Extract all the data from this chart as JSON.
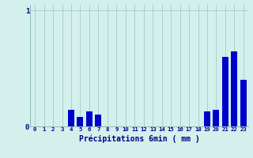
{
  "values": [
    0,
    0,
    0,
    0,
    0.14,
    0.08,
    0.13,
    0.1,
    0,
    0,
    0,
    0,
    0,
    0,
    0,
    0,
    0,
    0,
    0,
    0.13,
    0.14,
    0.6,
    0.65,
    0.4
  ],
  "xlabel": "Précipitations 6min ( mm )",
  "ylim": [
    0,
    1.05
  ],
  "xlim": [
    -0.5,
    23.5
  ],
  "yticks": [
    0,
    1
  ],
  "ytick_labels": [
    "0",
    "1"
  ],
  "xtick_labels": [
    "0",
    "1",
    "2",
    "3",
    "4",
    "5",
    "6",
    "7",
    "8",
    "9",
    "10",
    "11",
    "12",
    "13",
    "14",
    "15",
    "16",
    "17",
    "18",
    "19",
    "20",
    "21",
    "22",
    "23"
  ],
  "bar_color": "#0000cc",
  "bg_color": "#d4f0ec",
  "grid_color": "#aacfcb",
  "tick_color": "#00008b",
  "label_color": "#00008b",
  "bar_width": 0.7
}
